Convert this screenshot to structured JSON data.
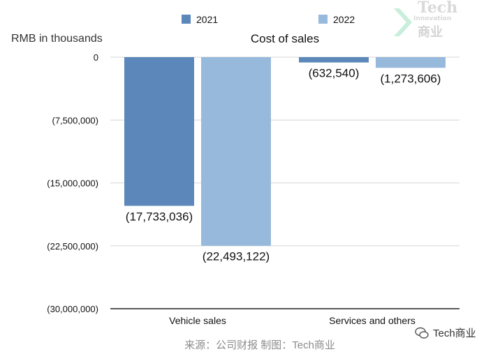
{
  "chart_data": {
    "type": "bar",
    "title": "Cost of sales",
    "ylabel": "RMB in thousands",
    "categories": [
      "Vehicle sales",
      "Services and others"
    ],
    "series": [
      {
        "name": "2021",
        "color": "#5b87bb",
        "values": [
          -17733036,
          -632540
        ],
        "labels": [
          "(17,733,036)",
          "(632,540)"
        ]
      },
      {
        "name": "2022",
        "color": "#97b9dc",
        "values": [
          -22493122,
          -1273606
        ],
        "labels": [
          "(22,493,122)",
          "(1,273,606)"
        ]
      }
    ],
    "ylim": [
      -30000000,
      0
    ],
    "yticks": [
      0,
      -7500000,
      -15000000,
      -22500000,
      -30000000
    ],
    "ytick_labels": [
      "0",
      "(7,500,000)",
      "(15,000,000)",
      "(22,500,000)",
      "(30,000,000)"
    ],
    "legend_position": "top",
    "grid": true
  },
  "source_note": "来源：公司财报 制图：Tech商业",
  "logo": {
    "title": "Tech",
    "subtitle": "Innovation",
    "cn": "商业"
  },
  "watermark": {
    "text": "Tech商业",
    "icon": "wechat-icon"
  }
}
